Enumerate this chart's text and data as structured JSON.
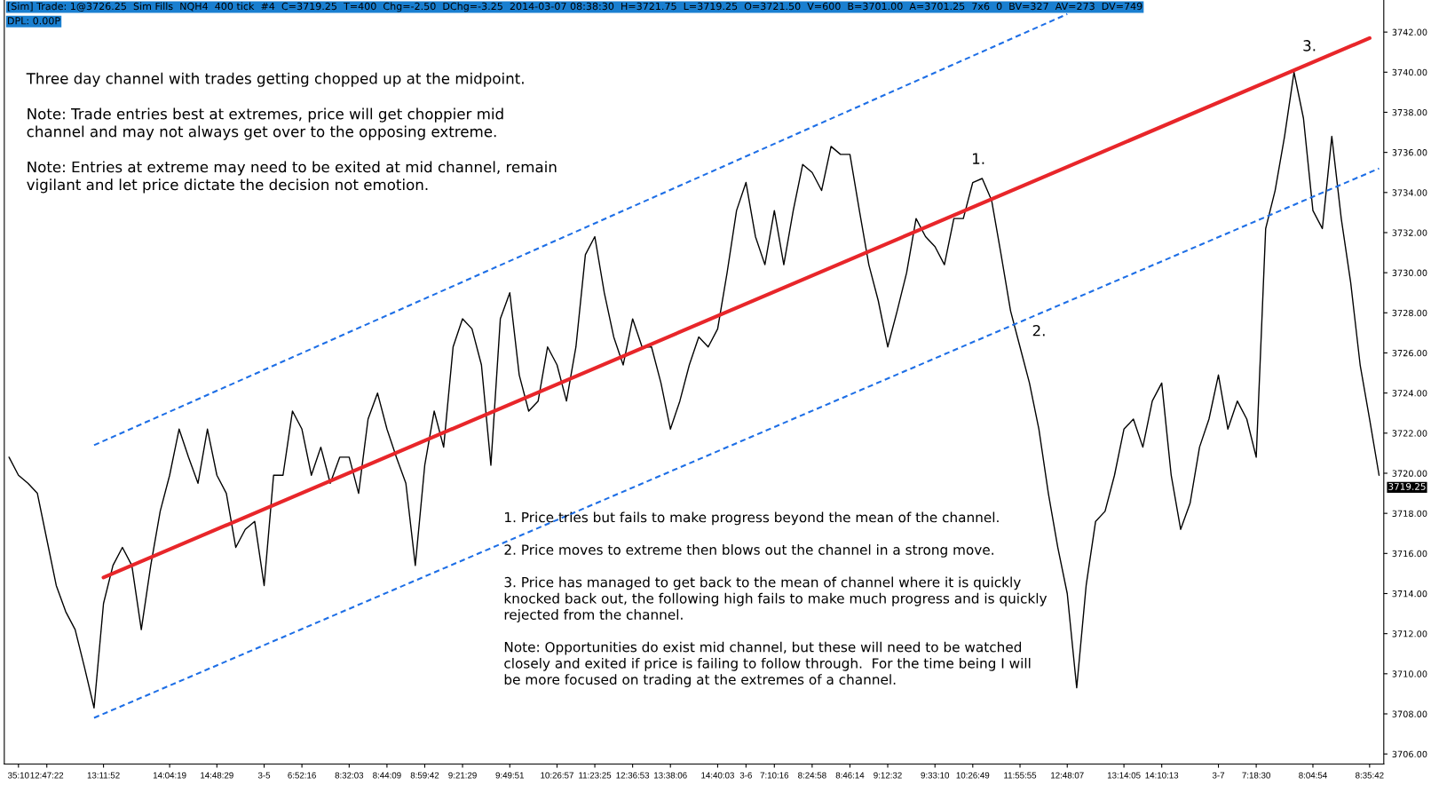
{
  "chart_data": {
    "type": "line",
    "series": [
      {
        "color": "#000000",
        "values": [
          3720.8,
          3719.9,
          3719.5,
          3719.0,
          3716.7,
          3714.4,
          3713.1,
          3712.2,
          3710.3,
          3708.3,
          3713.5,
          3715.4,
          3716.3,
          3715.4,
          3712.2,
          3715.4,
          3718.1,
          3719.9,
          3722.2,
          3720.8,
          3719.5,
          3722.2,
          3719.9,
          3719.0,
          3716.3,
          3717.2,
          3717.6,
          3714.4,
          3719.9,
          3719.9,
          3723.1,
          3722.2,
          3719.9,
          3721.3,
          3719.5,
          3720.8,
          3720.8,
          3719.0,
          3722.7,
          3724.0,
          3722.2,
          3720.8,
          3719.5,
          3715.4,
          3720.4,
          3723.1,
          3721.3,
          3726.3,
          3727.7,
          3727.2,
          3725.4,
          3720.4,
          3727.7,
          3729.0,
          3724.9,
          3723.1,
          3723.6,
          3726.3,
          3725.4,
          3723.6,
          3726.3,
          3730.9,
          3731.8,
          3729.0,
          3726.8,
          3725.4,
          3727.7,
          3726.3,
          3726.3,
          3724.5,
          3722.2,
          3723.6,
          3725.4,
          3726.8,
          3726.3,
          3727.2,
          3730.0,
          3733.1,
          3734.5,
          3731.8,
          3730.4,
          3733.1,
          3730.4,
          3733.1,
          3735.4,
          3735.0,
          3734.1,
          3736.3,
          3735.9,
          3735.9,
          3733.1,
          3730.4,
          3728.6,
          3726.3,
          3728.1,
          3730.0,
          3732.7,
          3731.8,
          3731.3,
          3730.4,
          3732.7,
          3732.7,
          3734.5,
          3734.7,
          3733.6,
          3730.9,
          3728.1,
          3726.3,
          3724.5,
          3722.2,
          3719.0,
          3716.3,
          3714.0,
          3709.3,
          3714.4,
          3717.6,
          3718.1,
          3719.9,
          3722.2,
          3722.7,
          3721.3,
          3723.6,
          3724.5,
          3719.9,
          3717.2,
          3718.5,
          3721.3,
          3722.7,
          3724.9,
          3722.2,
          3723.6,
          3722.7,
          3720.8,
          3732.2,
          3734.1,
          3736.8,
          3740.0,
          3737.7,
          3733.1,
          3732.2,
          3736.8,
          3732.7,
          3729.5,
          3725.4,
          3722.7,
          3719.9
        ]
      },
      {
        "color": "#e8262a",
        "values": [
          null,
          null,
          null,
          null,
          null,
          null,
          null,
          null,
          null,
          null,
          3714.8,
          null,
          null,
          null,
          null,
          null,
          null,
          null,
          null,
          null,
          null,
          null,
          null,
          null,
          null,
          null,
          null,
          null,
          null,
          null,
          null,
          null,
          null,
          null,
          null,
          null,
          null,
          null,
          null,
          null,
          null,
          null,
          null,
          null,
          null,
          null,
          null,
          null,
          null,
          null,
          null,
          null,
          null,
          null,
          null,
          null,
          null,
          null,
          null,
          null,
          null,
          null,
          null,
          null,
          null,
          null,
          null,
          null,
          null,
          null,
          null,
          null,
          null,
          null,
          null,
          null,
          null,
          null,
          null,
          null,
          null,
          null,
          null,
          null,
          null,
          null,
          null,
          null,
          null,
          null,
          null,
          null,
          null,
          null,
          null,
          null,
          null,
          null,
          null,
          null,
          null,
          null,
          null,
          null,
          null,
          null,
          null,
          null,
          null,
          null,
          null,
          null,
          null,
          null,
          null,
          null,
          null,
          null,
          null,
          null,
          null,
          null,
          null,
          null,
          null,
          null,
          null,
          null,
          null,
          null,
          null,
          null,
          null,
          null,
          null,
          null,
          null,
          null,
          null,
          null,
          null,
          null,
          null,
          null,
          3741.7,
          null
        ]
      },
      {
        "color": "#1e6fe6",
        "line_style": "dashed",
        "values": [
          null,
          null,
          null,
          null,
          null,
          null,
          null,
          null,
          null,
          3721.4,
          null,
          null,
          null,
          null,
          null,
          null,
          null,
          null,
          null,
          null,
          null,
          null,
          null,
          null,
          null,
          null,
          null,
          null,
          null,
          null,
          null,
          null,
          null,
          null,
          null,
          null,
          null,
          null,
          null,
          null,
          null,
          null,
          null,
          null,
          null,
          null,
          null,
          null,
          null,
          null,
          null,
          null,
          null,
          null,
          null,
          null,
          null,
          null,
          null,
          null,
          null,
          null,
          null,
          null,
          null,
          null,
          null,
          null,
          null,
          null,
          null,
          null,
          null,
          null,
          null,
          null,
          null,
          null,
          null,
          null,
          null,
          null,
          null,
          null,
          null,
          null,
          null,
          null,
          null,
          null,
          null,
          null,
          null,
          null,
          null,
          null,
          null,
          null,
          null,
          null,
          null,
          null,
          null,
          null,
          null,
          null,
          null,
          null,
          null,
          null,
          null,
          null,
          3742.9,
          null,
          null,
          null,
          null,
          null,
          null,
          null,
          null,
          null,
          null,
          null,
          null,
          null,
          null,
          null,
          null,
          null,
          null,
          null,
          null,
          null,
          null,
          null,
          null,
          null,
          null,
          null,
          null,
          null,
          null,
          null,
          null,
          null
        ]
      },
      {
        "color": "#1e6fe6",
        "line_style": "dashed",
        "values": [
          null,
          null,
          null,
          null,
          null,
          null,
          null,
          null,
          null,
          3707.8,
          null,
          null,
          null,
          null,
          null,
          null,
          null,
          null,
          null,
          null,
          null,
          null,
          null,
          null,
          null,
          null,
          null,
          null,
          null,
          null,
          null,
          null,
          null,
          null,
          null,
          null,
          null,
          null,
          null,
          null,
          null,
          null,
          null,
          null,
          null,
          null,
          null,
          null,
          null,
          null,
          null,
          null,
          null,
          null,
          null,
          null,
          null,
          null,
          null,
          null,
          null,
          null,
          null,
          null,
          null,
          null,
          null,
          null,
          null,
          null,
          null,
          null,
          null,
          null,
          null,
          null,
          null,
          null,
          null,
          null,
          null,
          null,
          null,
          null,
          null,
          null,
          null,
          null,
          null,
          null,
          null,
          null,
          null,
          null,
          null,
          null,
          null,
          null,
          null,
          null,
          null,
          null,
          null,
          null,
          null,
          null,
          null,
          null,
          null,
          null,
          null,
          null,
          null,
          null,
          null,
          null,
          null,
          null,
          null,
          null,
          null,
          null,
          null,
          null,
          null,
          null,
          null,
          null,
          null,
          null,
          null,
          null,
          null,
          null,
          null,
          null,
          null,
          null,
          null,
          null,
          null,
          null,
          null,
          null,
          null,
          3735.2
        ]
      }
    ],
    "categories": [
      null,
      "35:10",
      null,
      null,
      "12:47:22",
      null,
      null,
      null,
      null,
      null,
      "13:11:52",
      null,
      null,
      null,
      null,
      null,
      null,
      "14:04:19",
      null,
      null,
      null,
      null,
      "14:48:29",
      null,
      null,
      null,
      null,
      "3-5",
      null,
      null,
      null,
      "6:52:16",
      null,
      null,
      null,
      null,
      "8:32:03",
      null,
      null,
      null,
      "8:44:09",
      null,
      null,
      null,
      "8:59:42",
      null,
      null,
      null,
      "9:21:29",
      null,
      null,
      null,
      null,
      "9:49:51",
      null,
      null,
      null,
      null,
      "10:26:57",
      null,
      null,
      null,
      "11:23:25",
      null,
      null,
      null,
      "12:36:53",
      null,
      null,
      null,
      "13:38:06",
      null,
      null,
      null,
      null,
      "14:40:03",
      null,
      null,
      "3-6",
      null,
      null,
      "7:10:16",
      null,
      null,
      null,
      "8:24:58",
      null,
      null,
      null,
      "8:46:14",
      null,
      null,
      null,
      "9:12:32",
      null,
      null,
      null,
      null,
      "9:33:10",
      null,
      null,
      null,
      "10:26:49",
      null,
      null,
      null,
      null,
      "11:55:55",
      null,
      null,
      null,
      null,
      "12:48:07",
      null,
      null,
      null,
      null,
      null,
      "13:14:05",
      null,
      null,
      null,
      "14:10:13",
      null,
      null,
      null,
      null,
      null,
      "3-7",
      null,
      null,
      null,
      "7:18:30",
      null,
      null,
      null,
      null,
      null,
      "8:04:54",
      null,
      null,
      null,
      null,
      null,
      "8:35:42",
      null
    ],
    "ylim": [
      3705.5,
      3743.6
    ],
    "yticks": [
      {
        "value": 3706,
        "label": "3706.00"
      },
      {
        "value": 3708,
        "label": "3708.00"
      },
      {
        "value": 3710,
        "label": "3710.00"
      },
      {
        "value": 3712,
        "label": "3712.00"
      },
      {
        "value": 3714,
        "label": "3714.00"
      },
      {
        "value": 3716,
        "label": "3716.00"
      },
      {
        "value": 3718,
        "label": "3718.00"
      },
      {
        "value": 3720,
        "label": "3720.00"
      },
      {
        "value": 3722,
        "label": "3722.00"
      },
      {
        "value": 3724,
        "label": "3724.00"
      },
      {
        "value": 3726,
        "label": "3726.00"
      },
      {
        "value": 3728,
        "label": "3728.00"
      },
      {
        "value": 3730,
        "label": "3730.00"
      },
      {
        "value": 3732,
        "label": "3732.00"
      },
      {
        "value": 3734,
        "label": "3734.00"
      },
      {
        "value": 3736,
        "label": "3736.00"
      },
      {
        "value": 3738,
        "label": "3738.00"
      },
      {
        "value": 3740,
        "label": "3740.00"
      },
      {
        "value": 3742,
        "label": "3742.00"
      }
    ],
    "grid": false,
    "legend": false,
    "marker": "none",
    "annotations": [
      "[Sim] Trade: 1@3726.25  Sim Fills  NQH4  400 tick  #4  C=3719.25  T=400  Chg=-2.50  DChg=-3.25  2014-03-07 08:38:30  H=3721.75  L=3719.25  O=3721.50  V=600  B=3701.00  A=3701.25  7x6  0  BV=327  AV=273  DV=749",
      "DPL: 0.00P",
      "Three day channel with trades getting chopped up at the midpoint.\n\nNote: Trade entries best at extremes, price will get choppier mid\nchannel and may not always get over to the opposing extreme.\n\nNote: Entries at extreme may need to be exited at mid channel, remain\nvigilant and let price dictate the decision not emotion.",
      "1. Price tries but fails to make progress beyond the mean of the channel.\n\n2. Price moves to extreme then blows out the channel in a strong move.\n\n3. Price has managed to get back to the mean of channel where it is quickly\nknocked back out, the following high fails to make much progress and is quickly\nrejected from the channel.\n\nNote: Opportunities do exist mid channel, but these will need to be watched\nclosely and exited if price is failing to follow through.  For the time being I will\nbe more focused on trading at the extremes of a channel.",
      "1.",
      "2.",
      "3.",
      "3719.25"
    ]
  }
}
